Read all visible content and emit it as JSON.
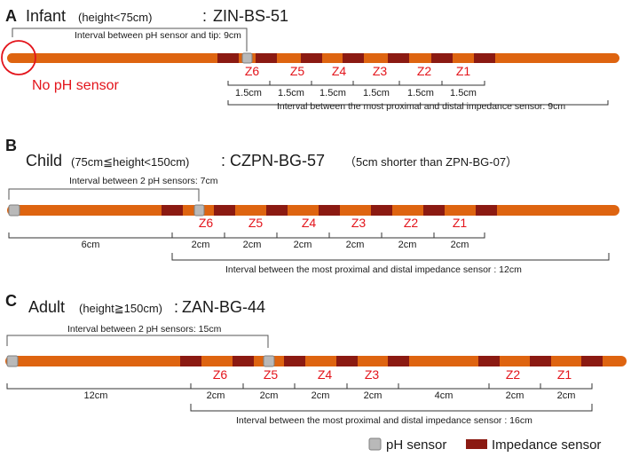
{
  "colors": {
    "catheter": "#DE6410",
    "impedance": "#8B1A12",
    "ph_sensor_fill": "#B9B9B9",
    "ph_sensor_stroke": "#808080",
    "zone_label": "#E3141B",
    "text": "#1a1a1a",
    "bracket": "#333333"
  },
  "panels": [
    {
      "letter": "A",
      "name": "Infant",
      "condition": "(height<75cm)",
      "separator": ":",
      "model": "ZIN-BS-51",
      "note": "",
      "ph_interval_label": "Interval between pH sensor and tip: 9cm",
      "no_ph_label": "No pH sensor",
      "zones": [
        "Z6",
        "Z5",
        "Z4",
        "Z3",
        "Z2",
        "Z1"
      ],
      "spacings": [
        "1.5cm",
        "1.5cm",
        "1.5cm",
        "1.5cm",
        "1.5cm",
        "1.5cm"
      ],
      "impedance_interval_label": "Interval between the most proximal and distal impedance sensor: 9cm"
    },
    {
      "letter": "B",
      "name": "Child",
      "condition": "(75cm≦height<150cm)",
      "separator": ":",
      "model": "CZPN-BG-57",
      "note": "（5cm shorter than ZPN-BG-07）",
      "ph_interval_label": "Interval between 2 pH sensors: 7cm",
      "zones": [
        "Z6",
        "Z5",
        "Z4",
        "Z3",
        "Z2",
        "Z1"
      ],
      "spacings": [
        "6cm",
        "2cm",
        "2cm",
        "2cm",
        "2cm",
        "2cm",
        "2cm"
      ],
      "impedance_interval_label": "Interval between the most proximal and distal impedance sensor : 12cm"
    },
    {
      "letter": "C",
      "name": "Adult",
      "condition": "(height≧150cm)",
      "separator": ":",
      "model": "ZAN-BG-44",
      "note": "",
      "ph_interval_label": "Interval between 2 pH sensors: 15cm",
      "zones": [
        "Z6",
        "Z5",
        "Z4",
        "Z3",
        "Z2",
        "Z1"
      ],
      "spacings": [
        "12cm",
        "2cm",
        "2cm",
        "2cm",
        "2cm",
        "4cm",
        "2cm",
        "2cm"
      ],
      "impedance_interval_label": "Interval between the most proximal and distal impedance sensor : 16cm"
    }
  ],
  "legend": {
    "ph_sensor": "pH sensor",
    "impedance_sensor": "Impedance sensor"
  }
}
